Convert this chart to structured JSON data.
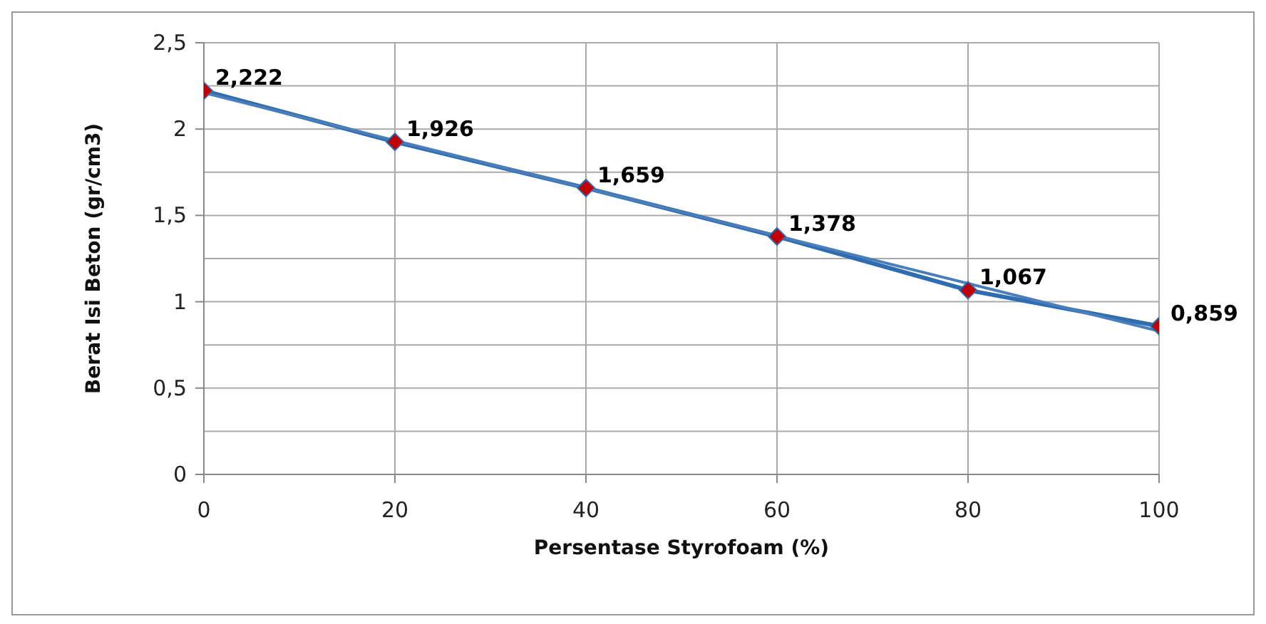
{
  "chart_data": {
    "type": "line",
    "xlabel": "Persentase Styrofoam (%)",
    "ylabel": "Berat Isi Beton (gr/cm3)",
    "x": [
      0,
      20,
      40,
      60,
      80,
      100
    ],
    "series": [
      {
        "color": "#2f6db0",
        "colors": [
          "#c00000",
          "#c00000",
          "#c00000",
          "#c00000",
          "#c00000",
          "#c00000"
        ],
        "values": [
          2.222,
          1.926,
          1.659,
          1.378,
          1.067,
          0.859
        ],
        "marker": "diamond",
        "value_labels": [
          "2,222",
          "1,926",
          "1,659",
          "1,378",
          "1,067",
          "0,859"
        ]
      },
      {
        "type": "line",
        "x": [
          0,
          100
        ],
        "color": "#4a7ebb",
        "values": [
          2.21,
          0.83
        ],
        "marker": "none"
      }
    ],
    "xlim": [
      0,
      100
    ],
    "xticks": [
      0,
      20,
      40,
      60,
      80,
      100
    ],
    "ylim": [
      0,
      2.5
    ],
    "yticks": [
      0,
      {
        "value": 0.25,
        "label": null
      },
      {
        "value": 0.5,
        "label": "0,5"
      },
      {
        "value": 0.75,
        "label": null
      },
      1,
      {
        "value": 1.25,
        "label": null
      },
      {
        "value": 1.5,
        "label": "1,5"
      },
      {
        "value": 1.75,
        "label": null
      },
      2,
      {
        "value": 2.25,
        "label": null
      },
      {
        "value": 2.5,
        "label": "2,5"
      }
    ],
    "grid": true
  }
}
